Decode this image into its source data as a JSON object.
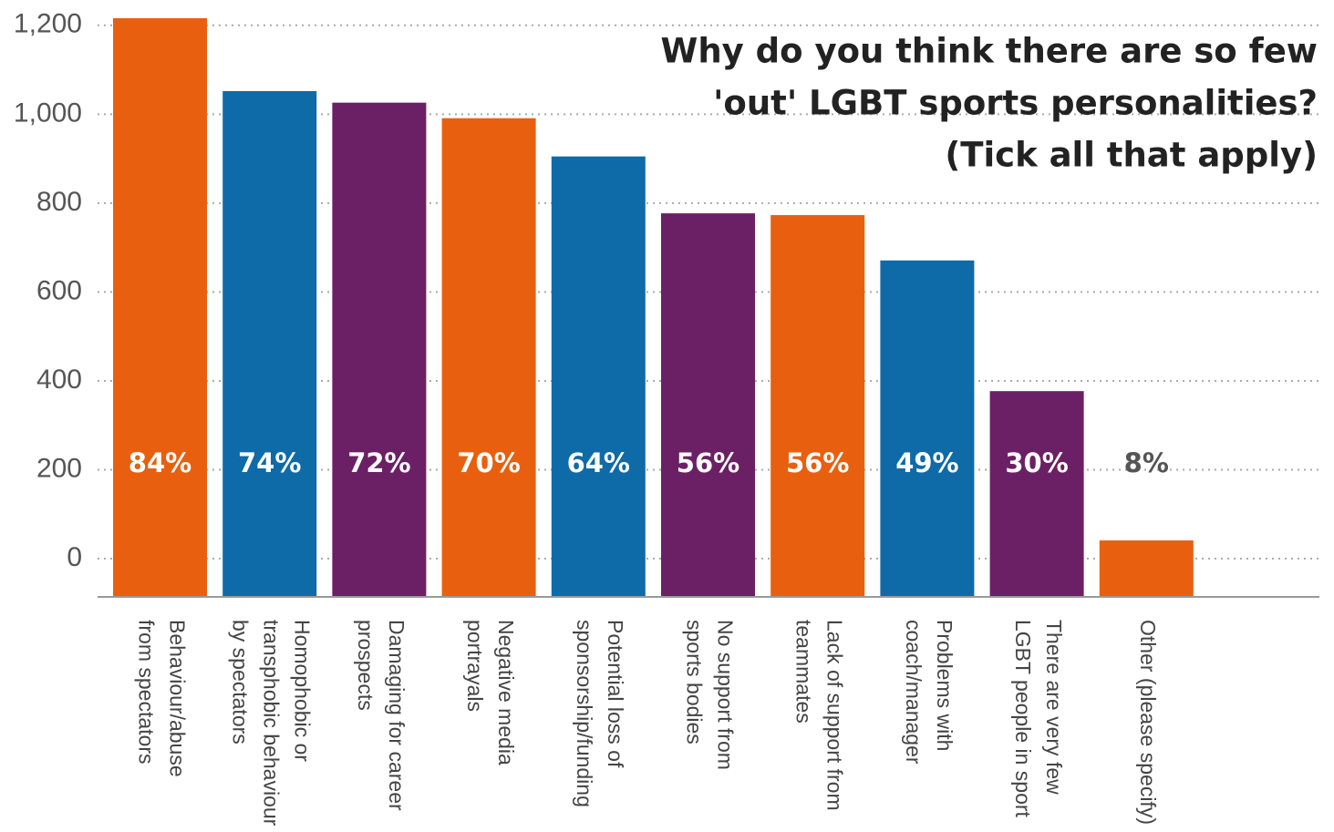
{
  "chart_data": {
    "type": "bar",
    "title": [
      "Why do you think there are so few",
      "'out' LGBT sports personalities?",
      "(Tick all that apply)"
    ],
    "categories": [
      [
        "Behaviour/abuse",
        "from spectators"
      ],
      [
        "Homophobic or",
        "transphobic behaviour",
        "by spectators"
      ],
      [
        "Damaging for career",
        "prospects"
      ],
      [
        "Negative media",
        "portrayals"
      ],
      [
        "Potential loss of",
        "sponsorship/funding"
      ],
      [
        "No support from",
        "sports bodies"
      ],
      [
        "Lack of support from",
        "teammates"
      ],
      [
        "Problems with",
        "coach/manager"
      ],
      [
        "There are very few",
        "LGBT people in sport"
      ],
      [
        "Other (please specify)"
      ]
    ],
    "values": [
      1216,
      1052,
      1026,
      991,
      905,
      777,
      773,
      671,
      377,
      41
    ],
    "bar_labels": [
      "84%",
      "74%",
      "72%",
      "70%",
      "64%",
      "56%",
      "56%",
      "49%",
      "30%",
      "8%"
    ],
    "colors": [
      "#e8600f",
      "#0f6aa8",
      "#6b2066",
      "#e8600f",
      "#0f6aa8",
      "#6b2066",
      "#e8600f",
      "#0f6aa8",
      "#6b2066",
      "#e8600f"
    ],
    "ylim": [
      -86,
      1257
    ],
    "yticks": [
      0,
      200,
      400,
      600,
      800,
      {
        "value": 1000,
        "label": "1,000"
      },
      {
        "value": 1200,
        "label": "1,200"
      }
    ],
    "grid": true
  }
}
